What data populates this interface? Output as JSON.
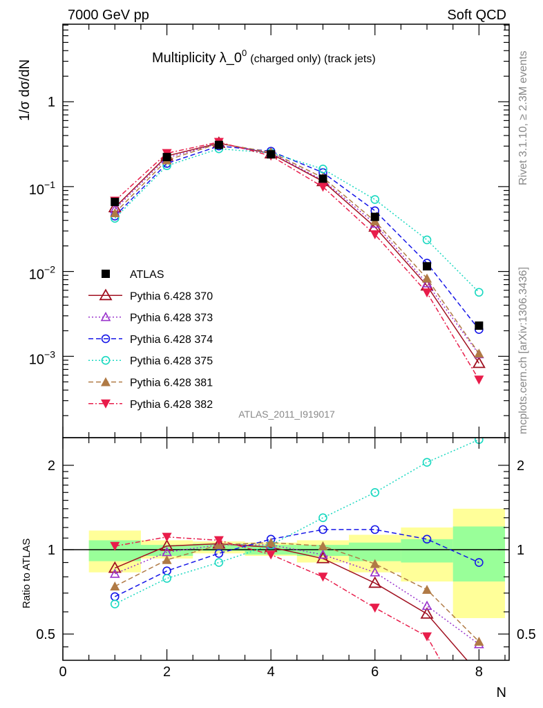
{
  "header": {
    "left": "7000 GeV pp",
    "right": "Soft QCD"
  },
  "side_text": {
    "rivet": "Rivet 3.1.10, ≥ 2.3M events",
    "mcplots": "mcplots.cern.ch [arXiv:1306.3436]"
  },
  "watermark": "ATLAS_2011_I919017",
  "colors": {
    "ATLAS": "#000000",
    "370": "#a01020",
    "373": "#9932cc",
    "374": "#1515e8",
    "375": "#18d8c0",
    "381": "#b07a45",
    "382": "#e81c4a",
    "band_outer": "#ffff99",
    "band_inner": "#99ff99"
  },
  "chart_data": [
    {
      "type": "line",
      "panel": "main",
      "title_main": "Multiplicity λ_0",
      "title_sup": "0",
      "title_small": "(charged only) (track jets)",
      "ylabel": "1/σ dσ/dN",
      "yscale": "log",
      "ylim": [
        0.00011,
        8.2
      ],
      "xlim": [
        0,
        8.58
      ],
      "ytick_labels": [
        {
          "v": 1,
          "base": "1",
          "exp": ""
        },
        {
          "v": 0.1,
          "base": "10",
          "exp": "−1"
        },
        {
          "v": 0.01,
          "base": "10",
          "exp": "−2"
        },
        {
          "v": 0.001,
          "base": "10",
          "exp": "−3"
        }
      ],
      "legend_position": "center-left",
      "x": [
        1,
        2,
        3,
        4,
        5,
        6,
        7,
        8
      ],
      "series": [
        {
          "key": "ATLAS",
          "name": "ATLAS",
          "marker": "square",
          "line": "none",
          "values": [
            0.066,
            0.223,
            0.31,
            0.24,
            0.124,
            0.044,
            0.0115,
            0.0023
          ]
        },
        {
          "key": "370",
          "name": "Pythia 6.428 370",
          "marker": "open-triangle",
          "line": "solid",
          "ratio": [
            0.86,
            1.03,
            1.05,
            1.02,
            0.93,
            0.76,
            0.59,
            0.36
          ]
        },
        {
          "key": "373",
          "name": "Pythia 6.428 373",
          "marker": "open-triangle-small",
          "line": "dotted",
          "ratio": [
            0.82,
            0.98,
            1.04,
            1.04,
            0.96,
            0.83,
            0.63,
            0.46
          ]
        },
        {
          "key": "374",
          "name": "Pythia 6.428 374",
          "marker": "open-circle",
          "line": "dashed",
          "ratio": [
            0.68,
            0.84,
            0.97,
            1.09,
            1.18,
            1.18,
            1.09,
            0.9
          ]
        },
        {
          "key": "375",
          "name": "Pythia 6.428 375",
          "marker": "open-circle",
          "line": "dotted",
          "ratio": [
            0.64,
            0.79,
            0.9,
            1.04,
            1.3,
            1.6,
            2.05,
            2.47
          ]
        },
        {
          "key": "381",
          "name": "Pythia 6.428 381",
          "marker": "filled-triangle",
          "line": "dashed",
          "ratio": [
            0.74,
            0.92,
            1.04,
            1.06,
            1.03,
            0.89,
            0.72,
            0.47
          ]
        },
        {
          "key": "382",
          "name": "Pythia 6.428 382",
          "marker": "filled-inverted-triangle",
          "line": "dashdot",
          "ratio": [
            1.03,
            1.11,
            1.08,
            0.96,
            0.8,
            0.62,
            0.49,
            0.23
          ]
        }
      ]
    },
    {
      "type": "line",
      "panel": "ratio",
      "ylabel": "Ratio to ATLAS",
      "xlabel": "N",
      "yscale": "log",
      "ylim": [
        0.403,
        2.51
      ],
      "xlim": [
        0,
        8.58
      ],
      "xtick_labels": [
        "0",
        "2",
        "4",
        "6",
        "8"
      ],
      "ytick_labels": [
        "0.5",
        "1",
        "2"
      ],
      "bands": {
        "bin_edges": [
          0.5,
          1.5,
          2.5,
          3.5,
          4.5,
          5.5,
          6.5,
          7.5,
          8.5
        ],
        "outer": [
          [
            0.83,
            1.17
          ],
          [
            0.93,
            1.08
          ],
          [
            0.97,
            1.07
          ],
          [
            0.95,
            1.06
          ],
          [
            0.9,
            1.08
          ],
          [
            0.83,
            1.13
          ],
          [
            0.77,
            1.2
          ],
          [
            0.57,
            1.4
          ]
        ],
        "inner": [
          [
            0.91,
            1.08
          ],
          [
            0.95,
            1.04
          ],
          [
            0.99,
            1.05
          ],
          [
            0.96,
            1.04
          ],
          [
            0.95,
            1.04
          ],
          [
            0.91,
            1.06
          ],
          [
            0.9,
            1.09
          ],
          [
            0.77,
            1.21
          ]
        ]
      }
    }
  ]
}
